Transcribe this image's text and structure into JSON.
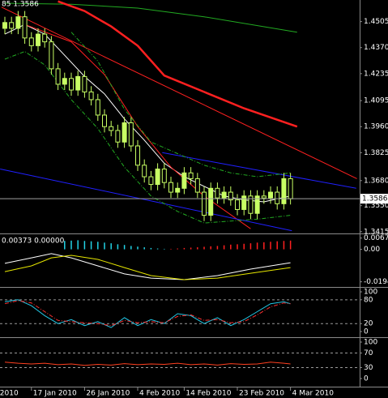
{
  "chart_data": [
    {
      "type": "candlestick",
      "header": "85 1.3586",
      "open": [
        1.447,
        1.45,
        1.447,
        1.453,
        1.442,
        1.438,
        1.444,
        1.44,
        1.426,
        1.418,
        1.421,
        1.415,
        1.422,
        1.414,
        1.41,
        1.402,
        1.396,
        1.394,
        1.388,
        1.398,
        1.386,
        1.376,
        1.37,
        1.366,
        1.374,
        1.367,
        1.362,
        1.364,
        1.372,
        1.369,
        1.362,
        1.35,
        1.364,
        1.359,
        1.362,
        1.358,
        1.353,
        1.36,
        1.351,
        1.36,
        1.359,
        1.362,
        1.356,
        1.369
      ],
      "high": [
        1.453,
        1.453,
        1.456,
        1.456,
        1.445,
        1.447,
        1.447,
        1.443,
        1.429,
        1.424,
        1.424,
        1.425,
        1.425,
        1.417,
        1.413,
        1.405,
        1.399,
        1.397,
        1.401,
        1.401,
        1.389,
        1.379,
        1.373,
        1.377,
        1.377,
        1.37,
        1.367,
        1.375,
        1.375,
        1.372,
        1.365,
        1.367,
        1.367,
        1.365,
        1.365,
        1.361,
        1.363,
        1.363,
        1.363,
        1.363,
        1.365,
        1.365,
        1.372,
        1.372
      ],
      "low": [
        1.444,
        1.444,
        1.444,
        1.439,
        1.435,
        1.435,
        1.437,
        1.423,
        1.415,
        1.415,
        1.412,
        1.412,
        1.411,
        1.407,
        1.399,
        1.393,
        1.391,
        1.385,
        1.385,
        1.383,
        1.373,
        1.367,
        1.363,
        1.363,
        1.364,
        1.359,
        1.359,
        1.361,
        1.366,
        1.359,
        1.347,
        1.347,
        1.356,
        1.356,
        1.355,
        1.35,
        1.35,
        1.348,
        1.348,
        1.356,
        1.356,
        1.353,
        1.353,
        1.3556
      ],
      "close": [
        1.45,
        1.447,
        1.453,
        1.442,
        1.438,
        1.444,
        1.44,
        1.426,
        1.418,
        1.421,
        1.415,
        1.422,
        1.414,
        1.41,
        1.402,
        1.396,
        1.394,
        1.388,
        1.398,
        1.386,
        1.376,
        1.37,
        1.366,
        1.374,
        1.367,
        1.362,
        1.364,
        1.372,
        1.369,
        1.362,
        1.35,
        1.364,
        1.359,
        1.362,
        1.358,
        1.353,
        1.36,
        1.351,
        1.36,
        1.359,
        1.362,
        1.356,
        1.369,
        1.3586
      ],
      "up_color": "#c8ff64",
      "down_color": "#000000",
      "wick_color": "#c8ff64",
      "xlim": [
        -0.73,
        53.41
      ],
      "ylim": [
        1.341,
        1.4617
      ],
      "yticks": [
        1.4505,
        {
          "value": 1.437,
          "label": "1.4370"
        },
        1.4235,
        1.4095,
        {
          "value": 1.396,
          "label": "1.3960"
        },
        1.3825,
        {
          "value": 1.368,
          "label": "1.3680"
        },
        {
          "value": 1.355,
          "label": "1.3550"
        },
        1.3415
      ],
      "current_price": 1.3586,
      "lines": [
        {
          "color": "#22aa22",
          "style": "solid",
          "x": [
            0,
            10,
            20,
            30,
            44
          ],
          "values": [
            1.46,
            1.4595,
            1.4575,
            1.453,
            1.445
          ]
        },
        {
          "color": "#ff2020",
          "style": "thick",
          "x": [
            8,
            12,
            16,
            20,
            24,
            30,
            36,
            44
          ],
          "values": [
            1.461,
            1.456,
            1.448,
            1.438,
            1.4225,
            1.414,
            1.4055,
            1.396
          ]
        },
        {
          "color": "#ffffff",
          "style": "solid",
          "x": [
            0,
            3,
            6,
            9,
            12,
            15,
            18,
            21,
            24,
            27,
            30,
            33,
            36,
            39,
            43
          ],
          "values": [
            1.444,
            1.449,
            1.444,
            1.433,
            1.422,
            1.413,
            1.4,
            1.389,
            1.377,
            1.37,
            1.365,
            1.36,
            1.358,
            1.357,
            1.36
          ]
        },
        {
          "color": "#ff2020",
          "style": "solid",
          "x": [
            -0.5,
            53
          ],
          "values": [
            1.458,
            1.369
          ]
        },
        {
          "color": "#ff2020",
          "style": "solid",
          "x": [
            3,
            10,
            15,
            20,
            25,
            30,
            37
          ],
          "values": [
            1.449,
            1.44,
            1.423,
            1.396,
            1.375,
            1.36,
            1.343
          ]
        },
        {
          "color": "#2020ff",
          "style": "solid",
          "x": [
            23.7,
            52.9
          ],
          "values": [
            1.3825,
            1.364
          ]
        },
        {
          "color": "#2020ff",
          "style": "solid",
          "x": [
            -0.7,
            43.2
          ],
          "values": [
            1.374,
            1.342
          ]
        },
        {
          "color": "#22aa22",
          "style": "dashed",
          "x": [
            10,
            14,
            18,
            22,
            26,
            30,
            34,
            38,
            43
          ],
          "values": [
            1.445,
            1.43,
            1.405,
            1.388,
            1.382,
            1.376,
            1.372,
            1.37,
            1.372
          ]
        },
        {
          "color": "#22aa22",
          "style": "dashed",
          "x": [
            0,
            3,
            6,
            10,
            14,
            18,
            22,
            26,
            30,
            34,
            38,
            43
          ],
          "values": [
            1.431,
            1.435,
            1.428,
            1.41,
            1.395,
            1.375,
            1.36,
            1.352,
            1.346,
            1.347,
            1.348,
            1.35
          ]
        }
      ]
    },
    {
      "type": "histogram",
      "header": "0.00373 0.00000",
      "xlim": [
        -0.73,
        53.41
      ],
      "ylim": [
        -0.0215,
        0.0085
      ],
      "yticks": [
        0.00671,
        {
          "value": 0,
          "label": "0.00"
        },
        -0.0194
      ],
      "series": [
        {
          "color": "#22d3e6",
          "x": [
            9,
            10,
            11,
            12,
            13,
            14,
            15,
            16,
            17,
            18,
            19,
            20,
            21,
            22,
            23,
            24
          ],
          "values": [
            0.005,
            0.0052,
            0.0054,
            0.005,
            0.0048,
            0.0045,
            0.004,
            0.0036,
            0.003,
            0.0026,
            0.002,
            0.0016,
            0.0012,
            0.0008,
            0.0005,
            0.0003
          ]
        },
        {
          "color": "#ff2020",
          "x": [
            25,
            26,
            27,
            28,
            29,
            30,
            31,
            32,
            33,
            34,
            35,
            36,
            37,
            38,
            39,
            40,
            41,
            42,
            43
          ],
          "values": [
            0.0003,
            0.0005,
            0.0008,
            0.001,
            0.0012,
            0.0015,
            0.0018,
            0.002,
            0.0024,
            0.0028,
            0.003,
            0.0033,
            0.0036,
            0.004,
            0.0042,
            0.0045,
            0.0048,
            0.005,
            0.0052
          ]
        }
      ],
      "lines": [
        {
          "color": "#ffffff",
          "style": "solid",
          "x": [
            0,
            4,
            7,
            10,
            14,
            18,
            22,
            27,
            32,
            37,
            43
          ],
          "values": [
            -0.0084,
            -0.0051,
            -0.0026,
            -0.0051,
            -0.0099,
            -0.0147,
            -0.0172,
            -0.0181,
            -0.0157,
            -0.0118,
            -0.008
          ]
        },
        {
          "color": "#e6e600",
          "style": "solid",
          "x": [
            0,
            4,
            7,
            10,
            14,
            18,
            22,
            27,
            32,
            37,
            43
          ],
          "values": [
            -0.0133,
            -0.0099,
            -0.0051,
            -0.0036,
            -0.006,
            -0.0109,
            -0.0157,
            -0.0181,
            -0.0172,
            -0.0143,
            -0.0109
          ]
        }
      ]
    },
    {
      "type": "line",
      "grid": "dashed",
      "xlim": [
        -0.73,
        53.41
      ],
      "ylim": [
        -10.2,
        108.2
      ],
      "yticks": [
        100,
        80,
        20,
        0
      ],
      "lines": [
        {
          "color": "#22c8e6",
          "style": "solid",
          "x": [
            0,
            2,
            4,
            6,
            8,
            10,
            12,
            14,
            16,
            18,
            20,
            22,
            24,
            26,
            28,
            30,
            32,
            34,
            36,
            38,
            40,
            42,
            43
          ],
          "values": [
            75,
            80,
            65,
            40,
            20,
            30,
            15,
            25,
            10,
            35,
            15,
            30,
            20,
            45,
            40,
            20,
            35,
            15,
            30,
            50,
            70,
            75,
            70
          ]
        },
        {
          "color": "#ff3030",
          "style": "dashed",
          "x": [
            0,
            2,
            4,
            6,
            8,
            10,
            12,
            14,
            16,
            18,
            20,
            22,
            24,
            26,
            28,
            30,
            32,
            34,
            36,
            38,
            40,
            42,
            43
          ],
          "values": [
            70,
            78,
            72,
            50,
            28,
            25,
            22,
            20,
            15,
            28,
            22,
            25,
            22,
            38,
            42,
            28,
            30,
            22,
            25,
            42,
            62,
            72,
            70
          ]
        }
      ]
    },
    {
      "type": "line",
      "grid": "dashed",
      "xlim": [
        -0.73,
        53.41
      ],
      "ylim": [
        -20,
        108.9
      ],
      "yticks": [
        100,
        70,
        30,
        0
      ],
      "xticks": [
        {
          "value": -1,
          "label": "2010"
        },
        {
          "value": 4,
          "label": "17 Jan 2010"
        },
        {
          "value": 12,
          "label": "26 Jan 2010"
        },
        {
          "value": 20,
          "label": "4 Feb 2010"
        },
        {
          "value": 27,
          "label": "14 Feb 2010"
        },
        {
          "value": 35,
          "label": "23 Feb 2010"
        },
        {
          "value": 43,
          "label": "4 Mar 2010"
        }
      ],
      "lines": [
        {
          "color": "#ff4020",
          "style": "solid",
          "x": [
            0,
            2,
            4,
            6,
            8,
            10,
            12,
            14,
            16,
            18,
            20,
            22,
            24,
            26,
            28,
            30,
            32,
            34,
            36,
            38,
            40,
            42,
            43
          ],
          "values": [
            45,
            42,
            40,
            42,
            38,
            40,
            36,
            39,
            37,
            41,
            38,
            40,
            39,
            42,
            38,
            40,
            37,
            41,
            39,
            40,
            45,
            42,
            40
          ]
        }
      ]
    }
  ]
}
